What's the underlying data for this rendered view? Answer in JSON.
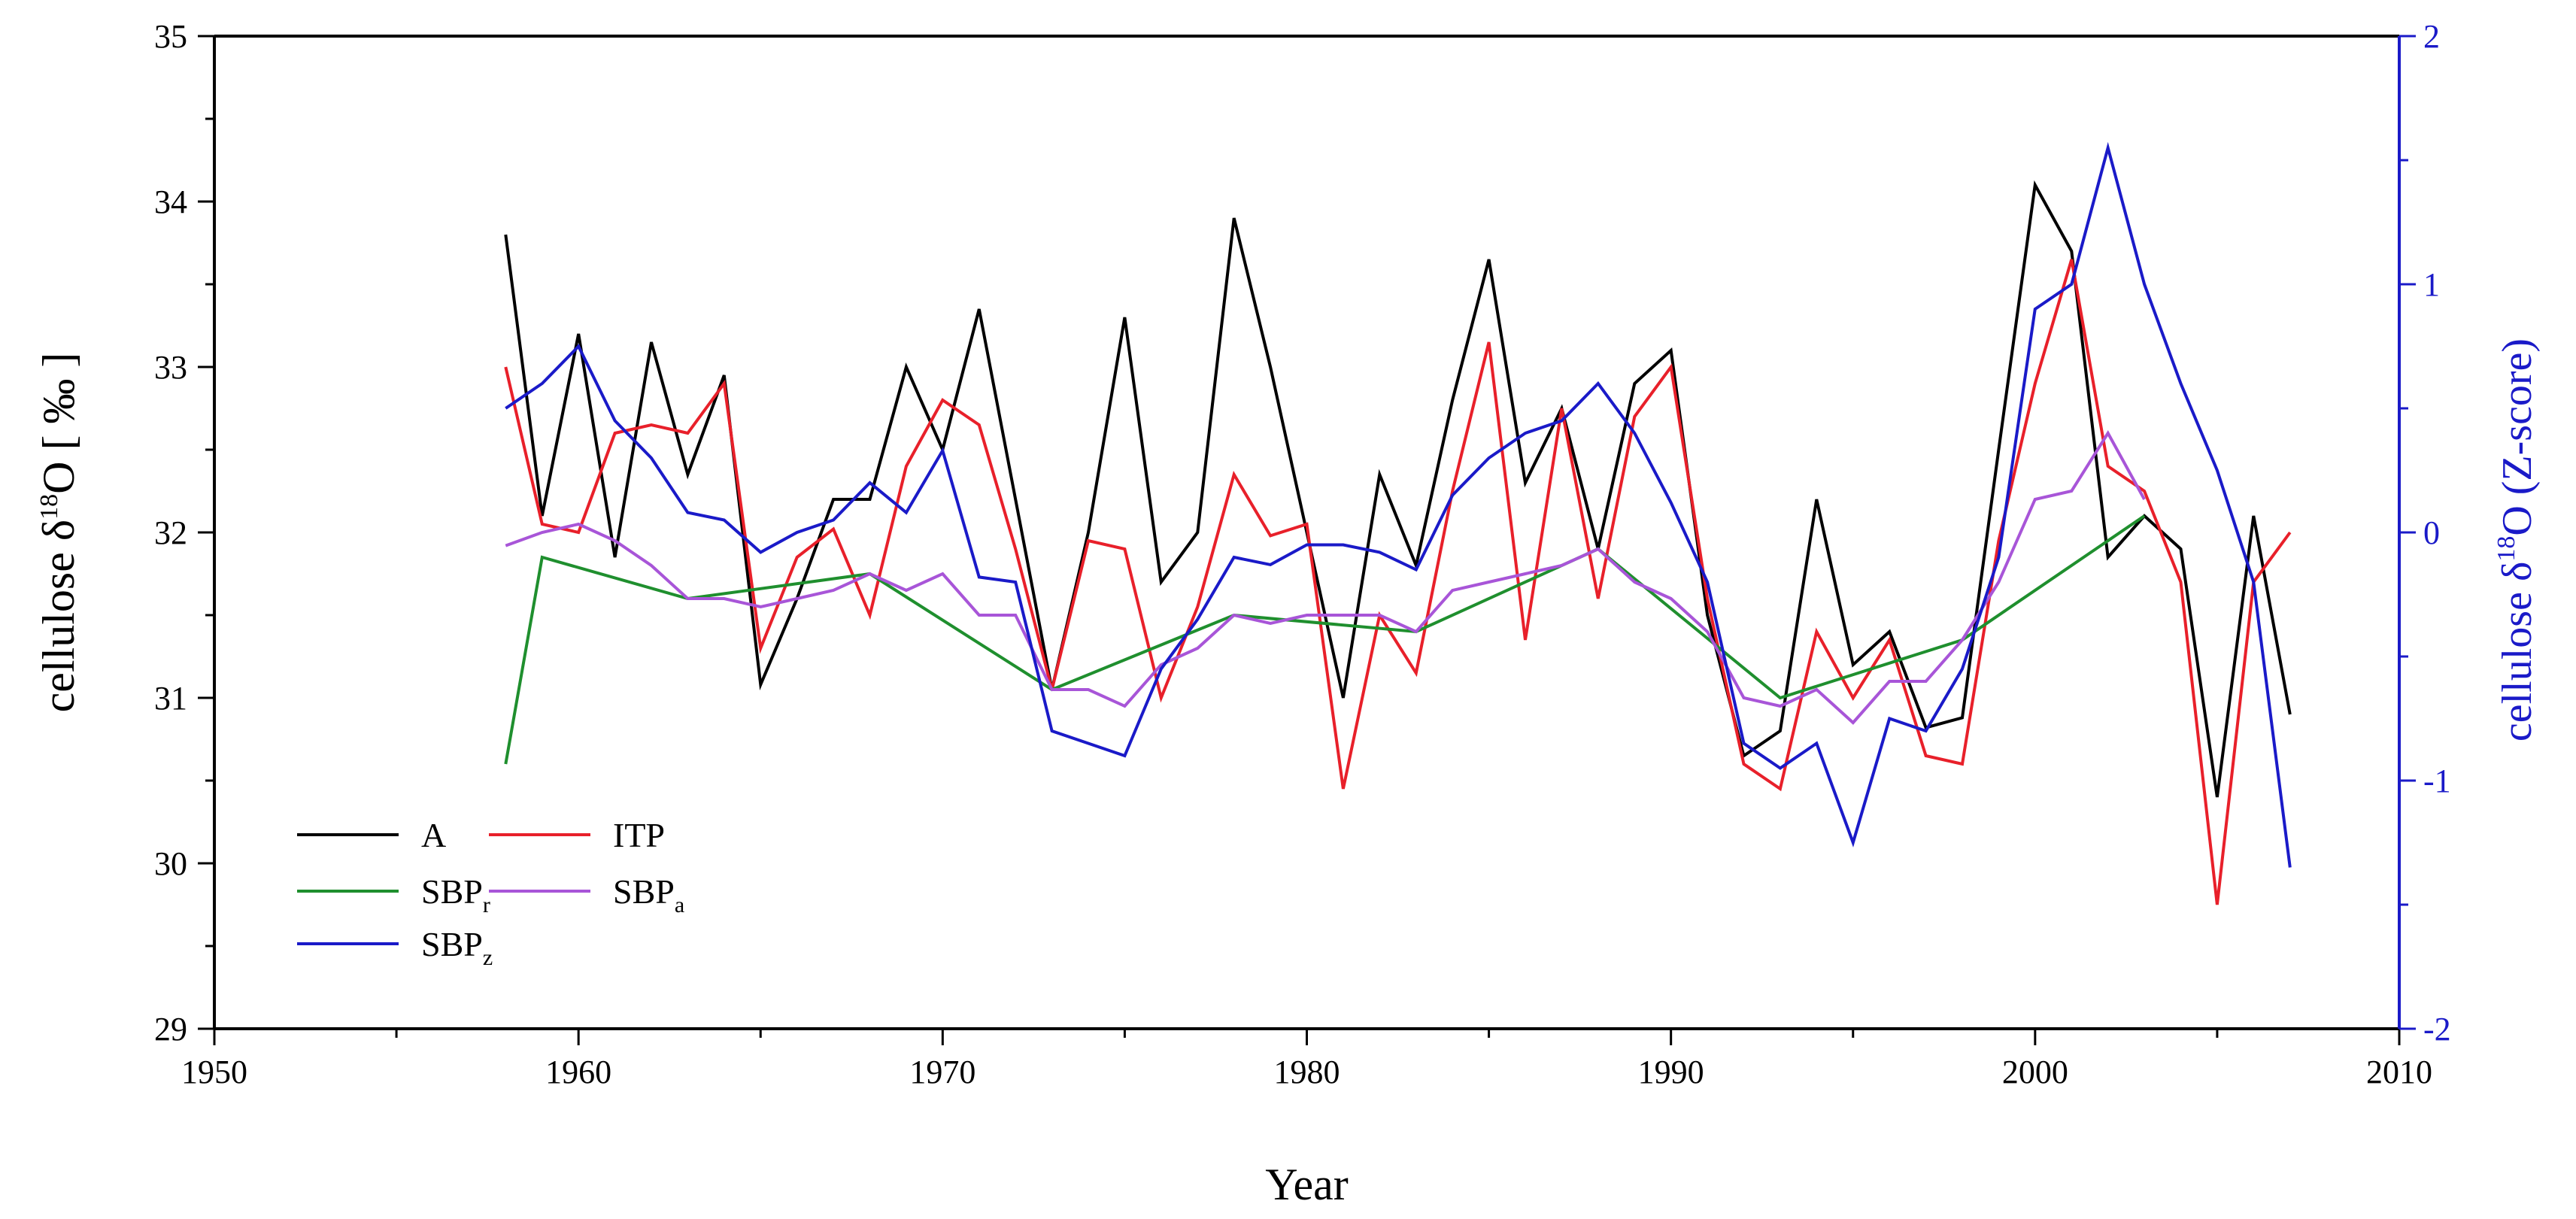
{
  "chart_data": {
    "type": "line",
    "xlabel": "Year",
    "ylabel": {
      "prefix": "cellulose δ",
      "sup": "18",
      "suffix": "O [ ‰ ]"
    },
    "ylabel_right": {
      "prefix": "cellulose δ",
      "sup": "18",
      "suffix": "O (Z-score)"
    },
    "xlim": [
      1950,
      2010
    ],
    "ylim": [
      29,
      35
    ],
    "ylim_right": [
      -2,
      2
    ],
    "x_ticks": [
      "1950",
      "1960",
      "1970",
      "1980",
      "1990",
      "2000",
      "2010"
    ],
    "y_ticks": [
      "29",
      "30",
      "31",
      "32",
      "33",
      "34",
      "35"
    ],
    "y_ticks_right": [
      "-2",
      "-1",
      "0",
      "1",
      "2"
    ],
    "grid": false,
    "legend_position": "bottom-left",
    "series": [
      {
        "id": "A",
        "name": "A",
        "sub": "",
        "color": "#000000",
        "axis": "left",
        "x": [
          1958,
          1959,
          1960,
          1961,
          1962,
          1963,
          1964,
          1965,
          1966,
          1967,
          1968,
          1969,
          1970,
          1971,
          1972,
          1973,
          1974,
          1975,
          1976,
          1977,
          1978,
          1979,
          1980,
          1981,
          1982,
          1983,
          1984,
          1985,
          1986,
          1987,
          1988,
          1989,
          1990,
          1991,
          1992,
          1993,
          1994,
          1995,
          1996,
          1997,
          1998,
          1999,
          2000,
          2001,
          2002,
          2003,
          2004,
          2005,
          2006,
          2007
        ],
        "y": [
          33.8,
          32.1,
          33.2,
          31.85,
          33.15,
          32.35,
          32.95,
          31.08,
          31.6,
          32.2,
          32.2,
          33.0,
          32.5,
          33.35,
          32.2,
          31.05,
          32.0,
          33.3,
          31.7,
          32.0,
          33.9,
          33.0,
          32.0,
          31.0,
          32.35,
          31.8,
          32.8,
          33.65,
          32.3,
          32.75,
          31.9,
          32.9,
          33.1,
          31.5,
          30.65,
          30.8,
          32.2,
          31.2,
          31.4,
          30.82,
          30.88,
          32.5,
          34.1,
          33.7,
          31.85,
          32.1,
          31.9,
          30.4,
          32.1,
          30.9
        ]
      },
      {
        "id": "ITP",
        "name": "ITP",
        "sub": "",
        "color": "#e8202a",
        "axis": "left",
        "x": [
          1958,
          1959,
          1960,
          1961,
          1962,
          1963,
          1964,
          1965,
          1966,
          1967,
          1968,
          1969,
          1970,
          1971,
          1972,
          1973,
          1974,
          1975,
          1976,
          1977,
          1978,
          1979,
          1980,
          1981,
          1982,
          1983,
          1984,
          1985,
          1986,
          1987,
          1988,
          1989,
          1990,
          1991,
          1992,
          1993,
          1994,
          1995,
          1996,
          1997,
          1998,
          1999,
          2000,
          2001,
          2002,
          2003,
          2004,
          2005,
          2006,
          2007
        ],
        "y": [
          33.0,
          32.05,
          32.0,
          32.6,
          32.65,
          32.6,
          32.9,
          31.3,
          31.85,
          32.02,
          31.5,
          32.4,
          32.8,
          32.65,
          31.9,
          31.05,
          31.95,
          31.9,
          31.0,
          31.55,
          32.35,
          31.98,
          32.05,
          30.45,
          31.5,
          31.15,
          32.25,
          33.15,
          31.35,
          32.75,
          31.6,
          32.7,
          33.0,
          31.6,
          30.6,
          30.45,
          31.4,
          31.0,
          31.35,
          30.65,
          30.6,
          31.95,
          32.9,
          33.65,
          32.4,
          32.25,
          31.7,
          29.75,
          31.7,
          32.0
        ]
      },
      {
        "id": "SBPr",
        "name": "SBP",
        "sub": "r",
        "color": "#1f8f2e",
        "axis": "left",
        "x": [
          1958,
          1959,
          1963,
          1968,
          1973,
          1978,
          1983,
          1988,
          1993,
          1998,
          2003
        ],
        "y": [
          30.6,
          31.85,
          31.6,
          31.75,
          31.05,
          31.5,
          31.4,
          31.9,
          31.0,
          31.35,
          32.1
        ]
      },
      {
        "id": "SBPa",
        "name": "SBP",
        "sub": "a",
        "color": "#a855d8",
        "axis": "left",
        "x": [
          1958,
          1959,
          1960,
          1961,
          1962,
          1963,
          1964,
          1965,
          1966,
          1967,
          1968,
          1969,
          1970,
          1971,
          1972,
          1973,
          1974,
          1975,
          1976,
          1977,
          1978,
          1979,
          1980,
          1981,
          1982,
          1983,
          1984,
          1985,
          1986,
          1987,
          1988,
          1989,
          1990,
          1991,
          1992,
          1993,
          1994,
          1995,
          1996,
          1997,
          1998,
          1999,
          2000,
          2001,
          2002,
          2003
        ],
        "y": [
          31.92,
          32.0,
          32.05,
          31.95,
          31.8,
          31.6,
          31.6,
          31.55,
          31.6,
          31.65,
          31.75,
          31.65,
          31.75,
          31.5,
          31.5,
          31.05,
          31.05,
          30.95,
          31.2,
          31.3,
          31.5,
          31.45,
          31.5,
          31.5,
          31.5,
          31.4,
          31.65,
          31.7,
          31.75,
          31.8,
          31.9,
          31.7,
          31.6,
          31.4,
          31.0,
          30.95,
          31.05,
          30.85,
          31.1,
          31.1,
          31.35,
          31.7,
          32.2,
          32.25,
          32.6,
          32.2
        ]
      },
      {
        "id": "SBPz",
        "name": "SBP",
        "sub": "z",
        "color": "#1a1ac8",
        "axis": "right",
        "x": [
          1958,
          1959,
          1960,
          1961,
          1962,
          1963,
          1964,
          1965,
          1966,
          1967,
          1968,
          1969,
          1970,
          1971,
          1972,
          1973,
          1974,
          1975,
          1976,
          1977,
          1978,
          1979,
          1980,
          1981,
          1982,
          1983,
          1984,
          1985,
          1986,
          1987,
          1988,
          1989,
          1990,
          1991,
          1992,
          1993,
          1994,
          1995,
          1996,
          1997,
          1998,
          1999,
          2000,
          2001,
          2002,
          2003,
          2004,
          2005,
          2006,
          2007
        ],
        "y": [
          0.5,
          0.6,
          0.75,
          0.45,
          0.3,
          0.08,
          0.05,
          -0.08,
          0.0,
          0.05,
          0.2,
          0.08,
          0.33,
          -0.18,
          -0.2,
          -0.8,
          -0.85,
          -0.9,
          -0.55,
          -0.35,
          -0.1,
          -0.13,
          -0.05,
          -0.05,
          -0.08,
          -0.15,
          0.15,
          0.3,
          0.4,
          0.45,
          0.6,
          0.4,
          0.12,
          -0.2,
          -0.85,
          -0.95,
          -0.85,
          -1.25,
          -0.75,
          -0.8,
          -0.55,
          -0.1,
          0.9,
          1.0,
          1.55,
          1.0,
          0.6,
          0.25,
          -0.2,
          -1.35
        ]
      }
    ]
  }
}
